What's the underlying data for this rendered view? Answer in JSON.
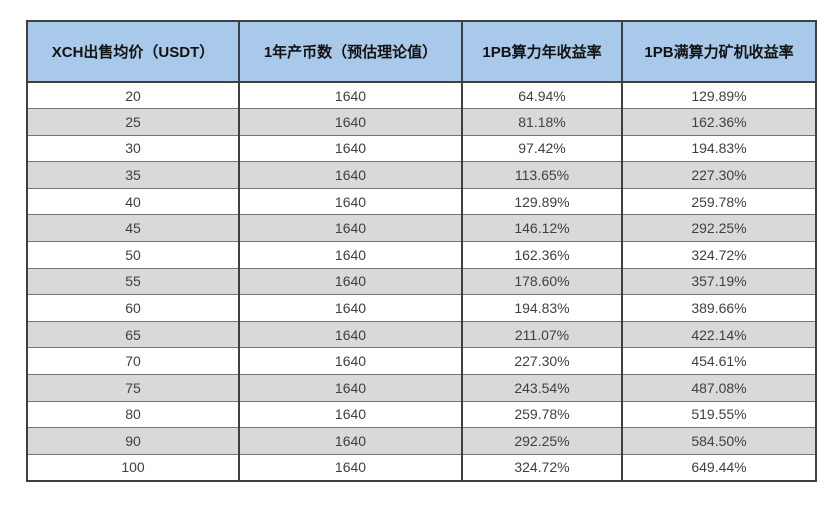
{
  "table": {
    "columns": [
      "XCH出售均价（USDT）",
      "1年产币数（预估理论值）",
      "1PB算力年收益率",
      "1PB满算力矿机收益率"
    ],
    "rows": [
      [
        "20",
        "1640",
        "64.94%",
        "129.89%"
      ],
      [
        "25",
        "1640",
        "81.18%",
        "162.36%"
      ],
      [
        "30",
        "1640",
        "97.42%",
        "194.83%"
      ],
      [
        "35",
        "1640",
        "113.65%",
        "227.30%"
      ],
      [
        "40",
        "1640",
        "129.89%",
        "259.78%"
      ],
      [
        "45",
        "1640",
        "146.12%",
        "292.25%"
      ],
      [
        "50",
        "1640",
        "162.36%",
        "324.72%"
      ],
      [
        "55",
        "1640",
        "178.60%",
        "357.19%"
      ],
      [
        "60",
        "1640",
        "194.83%",
        "389.66%"
      ],
      [
        "65",
        "1640",
        "211.07%",
        "422.14%"
      ],
      [
        "70",
        "1640",
        "227.30%",
        "454.61%"
      ],
      [
        "75",
        "1640",
        "243.54%",
        "487.08%"
      ],
      [
        "80",
        "1640",
        "259.78%",
        "519.55%"
      ],
      [
        "90",
        "1640",
        "292.25%",
        "584.50%"
      ],
      [
        "100",
        "1640",
        "324.72%",
        "649.44%"
      ]
    ],
    "colors": {
      "header_bg": "#a9c9ea",
      "row_bg": "#ffffff",
      "row_alt_bg": "#d9d9d9",
      "border": "#3f3f3f",
      "row_border": "#757575",
      "header_text": "#111111",
      "cell_text": "#404040",
      "page_bg": "#ffffff"
    }
  }
}
